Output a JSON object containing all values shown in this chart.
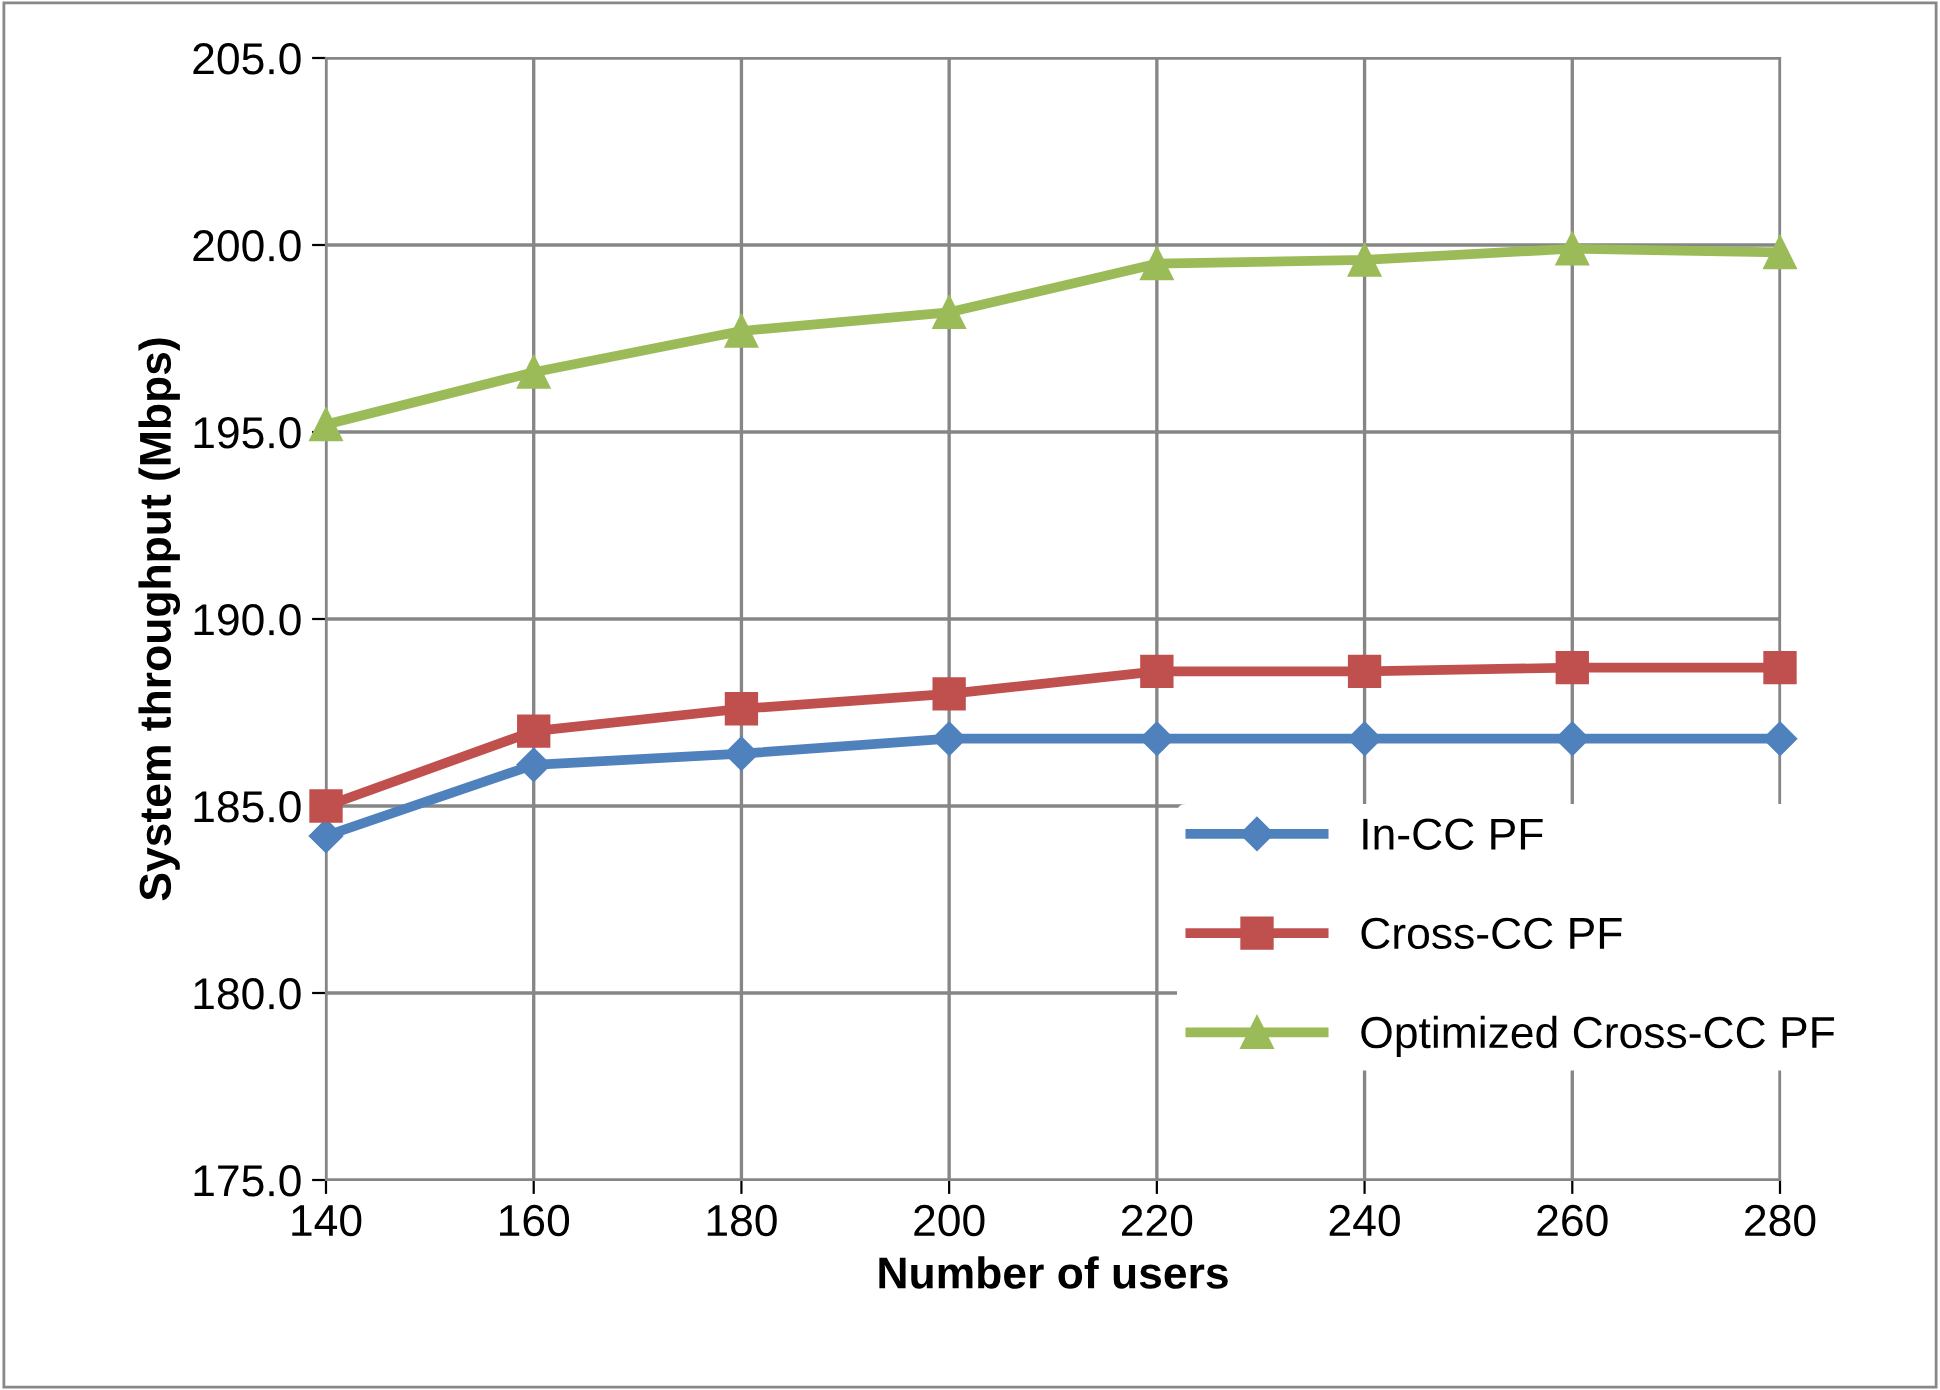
{
  "chart_data": {
    "type": "line",
    "xlabel": "Number of users",
    "ylabel": "System throughput (Mbps)",
    "x": [
      140,
      160,
      180,
      200,
      220,
      240,
      260,
      280
    ],
    "series": [
      {
        "name": "In-CC PF",
        "color": "#4f81bd",
        "marker": "diamond",
        "values": [
          184.2,
          186.1,
          186.4,
          186.8,
          186.8,
          186.8,
          186.8,
          186.8
        ]
      },
      {
        "name": "Cross-CC PF",
        "color": "#c0504d",
        "marker": "square",
        "values": [
          185.0,
          187.0,
          187.6,
          188.0,
          188.6,
          188.6,
          188.7,
          188.7
        ]
      },
      {
        "name": "Optimized Cross-CC PF",
        "color": "#9bbb59",
        "marker": "triangle",
        "values": [
          195.2,
          196.6,
          197.7,
          198.2,
          199.5,
          199.6,
          199.9,
          199.8
        ]
      }
    ],
    "xlim": [
      140,
      280
    ],
    "xticks": [
      140,
      160,
      180,
      200,
      220,
      240,
      260,
      280
    ],
    "ylim": [
      175,
      205
    ],
    "yticks": [
      {
        "value": 175,
        "label": "175.0"
      },
      {
        "value": 180,
        "label": "180.0"
      },
      {
        "value": 185,
        "label": "185.0"
      },
      {
        "value": 190,
        "label": "190.0"
      },
      {
        "value": 195,
        "label": "195.0"
      },
      {
        "value": 200,
        "label": "200.0"
      },
      {
        "value": 205,
        "label": "205.0"
      }
    ],
    "grid": true,
    "legend": "right",
    "line_style": "solid"
  }
}
